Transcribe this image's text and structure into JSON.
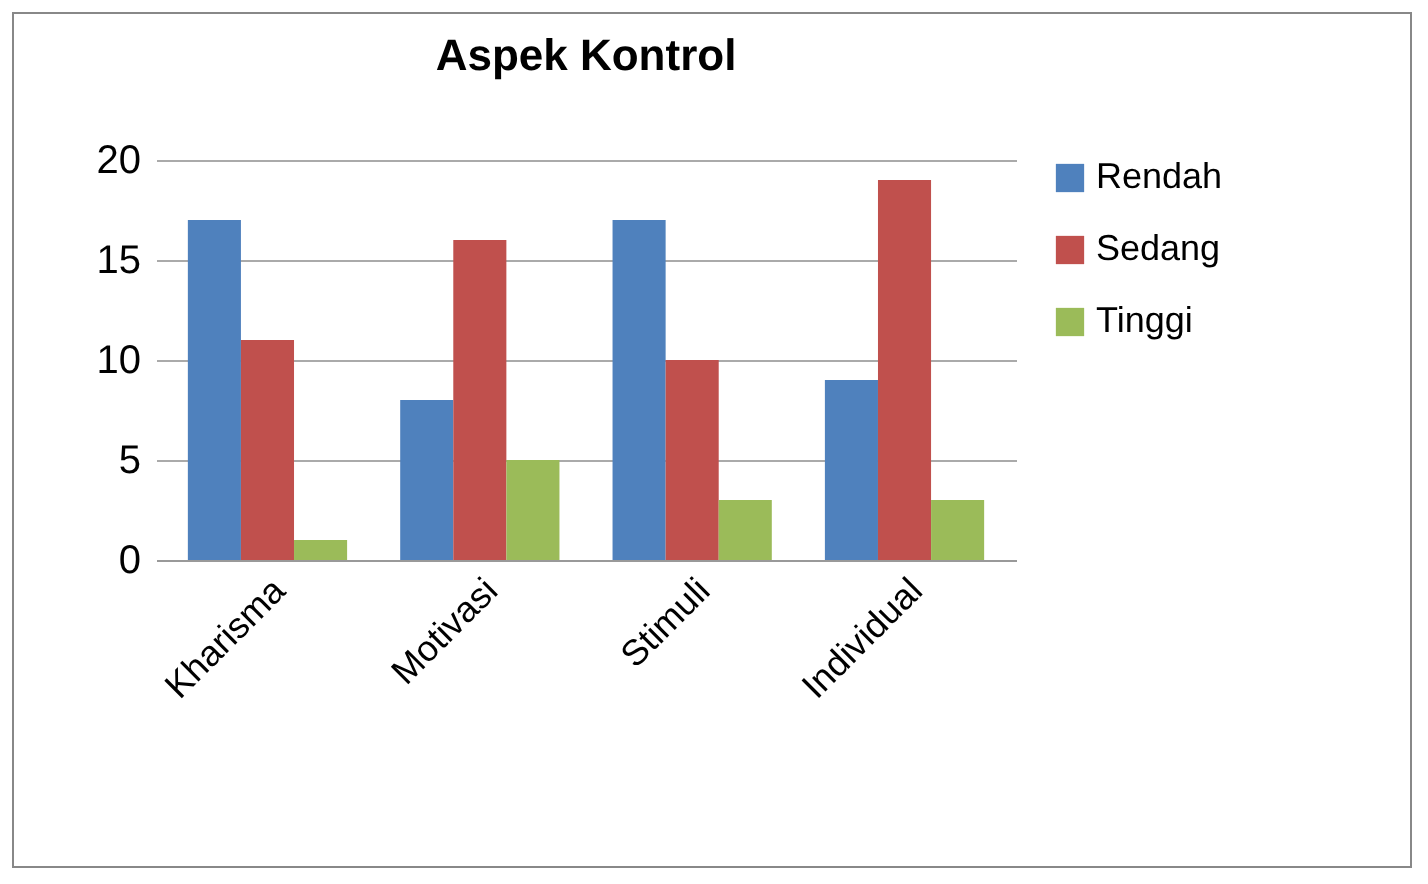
{
  "chart_data": {
    "type": "bar",
    "title": "Aspek Kontrol",
    "categories": [
      "Kharisma",
      "Motivasi",
      "Stimuli",
      "Individual"
    ],
    "series": [
      {
        "name": "Rendah",
        "color": "#4f81bd",
        "values": [
          17,
          8,
          17,
          9
        ]
      },
      {
        "name": "Sedang",
        "color": "#c0504d",
        "values": [
          11,
          16,
          10,
          19
        ]
      },
      {
        "name": "Tinggi",
        "color": "#9bbb59",
        "values": [
          1,
          5,
          3,
          3
        ]
      }
    ],
    "ylim": [
      0,
      20
    ],
    "yticks": [
      0,
      5,
      10,
      15,
      20
    ],
    "grid": "y",
    "legend": "right"
  }
}
